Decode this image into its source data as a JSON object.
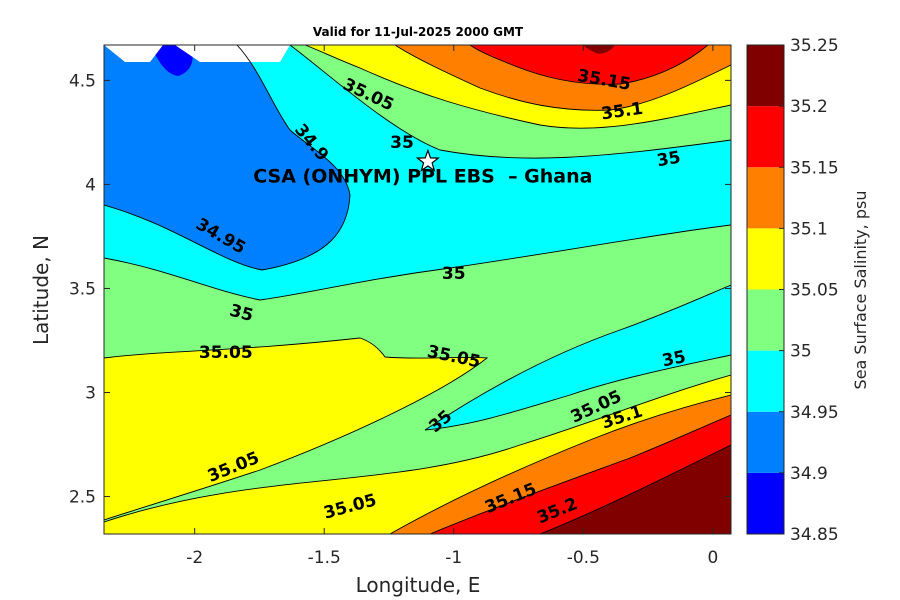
{
  "chart_data": {
    "type": "contour",
    "title": "Valid for 11-Jul-2025 2000 GMT",
    "xlabel": "Longitude, E",
    "ylabel": "Latitude, N",
    "xlim": [
      -2.35,
      0.07
    ],
    "ylim": [
      2.32,
      4.67
    ],
    "xticks": [
      -2,
      -1.5,
      -1,
      -0.5,
      0
    ],
    "xtick_labels": [
      "-2",
      "-1.5",
      "-1",
      "-0.5",
      "0"
    ],
    "yticks": [
      2.5,
      3,
      3.5,
      4,
      4.5
    ],
    "ytick_labels": [
      "2.5",
      "3",
      "3.5",
      "4",
      "4.5"
    ],
    "colorbar": {
      "label": "Sea Surface Salinity, psu",
      "levels": [
        34.85,
        34.9,
        34.95,
        35,
        35.05,
        35.1,
        35.15,
        35.2,
        35.25
      ],
      "level_labels": [
        "34.85",
        "34.9",
        "34.95",
        "35",
        "35.05",
        "35.1",
        "35.15",
        "35.2",
        "35.25"
      ],
      "colors": [
        "#0000ff",
        "#0080ff",
        "#00ffff",
        "#80ff80",
        "#ffff00",
        "#ff8000",
        "#ff0000",
        "#800000"
      ]
    },
    "contour_labels": [
      {
        "text": "35.15",
        "x": -0.42,
        "y": 4.5,
        "angle": 10
      },
      {
        "text": "35.05",
        "x": -1.33,
        "y": 4.43,
        "angle": 25
      },
      {
        "text": "35.1",
        "x": -0.35,
        "y": 4.35,
        "angle": -8
      },
      {
        "text": "34.9",
        "x": -1.55,
        "y": 4.2,
        "angle": 50
      },
      {
        "text": "35",
        "x": -1.2,
        "y": 4.2,
        "angle": 0
      },
      {
        "text": "35",
        "x": -0.17,
        "y": 4.12,
        "angle": -10
      },
      {
        "text": "34.95",
        "x": -1.9,
        "y": 3.75,
        "angle": 30
      },
      {
        "text": "35",
        "x": -1.0,
        "y": 3.57,
        "angle": 0
      },
      {
        "text": "35",
        "x": -1.82,
        "y": 3.38,
        "angle": 15
      },
      {
        "text": "35.05",
        "x": -1.88,
        "y": 3.19,
        "angle": 0
      },
      {
        "text": "35.05",
        "x": -1.0,
        "y": 3.17,
        "angle": 12
      },
      {
        "text": "35",
        "x": -0.15,
        "y": 3.16,
        "angle": -12
      },
      {
        "text": "35",
        "x": -1.05,
        "y": 2.86,
        "angle": -40
      },
      {
        "text": "35.05",
        "x": -0.45,
        "y": 2.93,
        "angle": -25
      },
      {
        "text": "35.1",
        "x": -0.35,
        "y": 2.88,
        "angle": -18
      },
      {
        "text": "35.05",
        "x": -1.85,
        "y": 2.64,
        "angle": -22
      },
      {
        "text": "35.15",
        "x": -0.78,
        "y": 2.49,
        "angle": -22
      },
      {
        "text": "35.05",
        "x": -1.4,
        "y": 2.45,
        "angle": -15
      },
      {
        "text": "35.2",
        "x": -0.6,
        "y": 2.43,
        "angle": -22
      }
    ],
    "site": {
      "label": "CSA (ONHYM) PPL EBS  – Ghana",
      "x": -1.1,
      "y": 4.11,
      "marker": "star"
    }
  }
}
